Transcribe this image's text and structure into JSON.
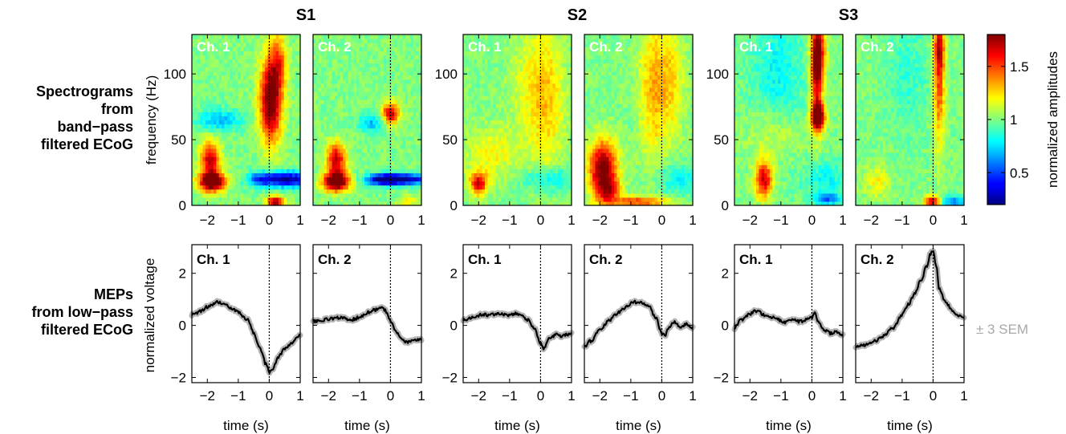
{
  "subjects": [
    "S1",
    "S2",
    "S3"
  ],
  "row_labels": {
    "spectrogram": [
      "Spectrograms",
      "from",
      "band−pass",
      "filtered ECoG"
    ],
    "mep": [
      "MEPs",
      "from low−pass",
      "filtered ECoG"
    ]
  },
  "colorbar": {
    "label": "normalized amplitudes",
    "ticks": [
      0.5,
      1,
      1.5
    ],
    "range": [
      0.2,
      1.8
    ]
  },
  "sem_label": "± 3 SEM",
  "chart_data": [
    {
      "type": "heatmap",
      "ylabel": "frequency (Hz)",
      "xlim": [
        -2.5,
        1
      ],
      "ylim": [
        0,
        130
      ],
      "xticks": [
        -2,
        -1,
        0,
        1
      ],
      "yticks": [
        0,
        50,
        100
      ],
      "panels": [
        {
          "subject": "S1",
          "channel": "Ch. 1",
          "blobs": [
            [
              -1.9,
              35,
              0.22,
              10,
              0.7
            ],
            [
              -1.85,
              18,
              0.3,
              5,
              1.0
            ],
            [
              0.05,
              80,
              0.25,
              22,
              0.9
            ],
            [
              0.3,
              110,
              0.2,
              15,
              0.4
            ],
            [
              0.6,
              20,
              0.55,
              4,
              -0.8
            ],
            [
              -0.3,
              20,
              0.3,
              4,
              -0.4
            ],
            [
              -1.6,
              65,
              0.5,
              6,
              -0.3
            ],
            [
              0.2,
              3,
              0.2,
              3,
              0.8
            ]
          ]
        },
        {
          "subject": "S1",
          "channel": "Ch. 2",
          "blobs": [
            [
              -1.75,
              35,
              0.22,
              9,
              0.7
            ],
            [
              -1.75,
              18,
              0.3,
              5,
              1.0
            ],
            [
              0.0,
              70,
              0.2,
              6,
              0.7
            ],
            [
              0.4,
              20,
              0.6,
              3,
              -0.8
            ],
            [
              -0.3,
              20,
              0.35,
              3,
              -0.5
            ],
            [
              -0.6,
              63,
              0.3,
              5,
              -0.3
            ],
            [
              0.6,
              3,
              0.3,
              3,
              0.2
            ]
          ]
        },
        {
          "subject": "S2",
          "channel": "Ch. 1",
          "blobs": [
            [
              -2.0,
              17,
              0.2,
              6,
              0.65
            ],
            [
              -1.6,
              40,
              0.6,
              14,
              0.2
            ],
            [
              0.2,
              80,
              0.4,
              40,
              0.28
            ],
            [
              0.3,
              20,
              0.6,
              7,
              -0.25
            ],
            [
              -0.5,
              90,
              0.4,
              30,
              0.12
            ]
          ]
        },
        {
          "subject": "S2",
          "channel": "Ch. 2",
          "blobs": [
            [
              -1.9,
              28,
              0.32,
              15,
              0.85
            ],
            [
              -1.7,
              12,
              0.25,
              6,
              0.4
            ],
            [
              -0.3,
              90,
              0.3,
              40,
              0.3
            ],
            [
              0.3,
              95,
              0.3,
              30,
              0.25
            ],
            [
              0.5,
              20,
              0.5,
              8,
              -0.2
            ],
            [
              -0.8,
              3,
              0.7,
              3,
              0.5
            ]
          ]
        },
        {
          "subject": "S3",
          "channel": "Ch. 1",
          "blobs": [
            [
              0.2,
              115,
              0.15,
              18,
              0.85
            ],
            [
              0.2,
              68,
              0.15,
              7,
              1.0
            ],
            [
              0.15,
              90,
              0.12,
              25,
              0.4
            ],
            [
              -1.55,
              20,
              0.2,
              10,
              0.7
            ],
            [
              -1.2,
              55,
              0.6,
              15,
              0.2
            ],
            [
              -1.1,
              95,
              0.6,
              40,
              -0.2
            ],
            [
              0.45,
              20,
              0.45,
              10,
              -0.2
            ],
            [
              0.5,
              5,
              0.3,
              3,
              -0.4
            ]
          ]
        },
        {
          "subject": "S3",
          "channel": "Ch. 2",
          "blobs": [
            [
              0.2,
              95,
              0.13,
              35,
              0.5
            ],
            [
              0.2,
              120,
              0.12,
              12,
              0.4
            ],
            [
              0.0,
              3,
              0.2,
              3,
              0.8
            ],
            [
              0.6,
              3,
              0.4,
              3,
              -0.4
            ],
            [
              -1.8,
              18,
              0.3,
              8,
              0.2
            ],
            [
              -0.8,
              100,
              0.5,
              30,
              -0.12
            ]
          ]
        }
      ]
    },
    {
      "type": "line",
      "xlabel": "time (s)",
      "ylabel": "normalized voltage",
      "xlim": [
        -2.5,
        1
      ],
      "ylim": [
        -2.2,
        3.1
      ],
      "xticks": [
        -2,
        -1,
        0,
        1
      ],
      "yticks": [
        -2,
        0,
        2
      ],
      "panels": [
        {
          "subject": "S1",
          "channel": "Ch. 1",
          "x": [
            -2.5,
            -2.2,
            -2.0,
            -1.7,
            -1.5,
            -1.2,
            -1.0,
            -0.7,
            -0.5,
            -0.3,
            -0.1,
            0.0,
            0.1,
            0.3,
            0.5,
            0.7,
            1.0
          ],
          "y": [
            0.4,
            0.55,
            0.7,
            0.9,
            0.85,
            0.65,
            0.5,
            0.2,
            -0.3,
            -0.9,
            -1.5,
            -1.8,
            -1.7,
            -1.2,
            -0.9,
            -0.7,
            -0.4
          ]
        },
        {
          "subject": "S1",
          "channel": "Ch. 2",
          "x": [
            -2.5,
            -2.2,
            -1.9,
            -1.6,
            -1.3,
            -1.0,
            -0.7,
            -0.5,
            -0.3,
            -0.2,
            0.0,
            0.2,
            0.4,
            0.6,
            0.8,
            1.0
          ],
          "y": [
            0.15,
            0.2,
            0.25,
            0.3,
            0.2,
            0.3,
            0.5,
            0.6,
            0.7,
            0.6,
            0.2,
            -0.3,
            -0.6,
            -0.65,
            -0.55,
            -0.55
          ]
        },
        {
          "subject": "S2",
          "channel": "Ch. 1",
          "x": [
            -2.5,
            -2.2,
            -1.9,
            -1.6,
            -1.3,
            -1.0,
            -0.8,
            -0.6,
            -0.4,
            -0.2,
            0.0,
            0.1,
            0.3,
            0.5,
            0.7,
            1.0
          ],
          "y": [
            0.2,
            0.3,
            0.4,
            0.4,
            0.45,
            0.4,
            0.45,
            0.35,
            0.2,
            -0.1,
            -0.7,
            -0.9,
            -0.5,
            -0.35,
            -0.4,
            -0.3
          ]
        },
        {
          "subject": "S2",
          "channel": "Ch. 2",
          "x": [
            -2.5,
            -2.3,
            -2.0,
            -1.7,
            -1.4,
            -1.1,
            -0.9,
            -0.6,
            -0.4,
            -0.2,
            0.0,
            0.1,
            0.2,
            0.4,
            0.6,
            0.8,
            1.0
          ],
          "y": [
            -0.85,
            -0.6,
            -0.2,
            0.2,
            0.5,
            0.75,
            0.9,
            0.85,
            0.7,
            0.3,
            -0.3,
            -0.4,
            -0.1,
            0.15,
            -0.05,
            0.05,
            -0.1
          ]
        },
        {
          "subject": "S3",
          "channel": "Ch. 1",
          "x": [
            -2.5,
            -2.3,
            -2.0,
            -1.8,
            -1.5,
            -1.2,
            -0.9,
            -0.6,
            -0.4,
            -0.2,
            0.0,
            0.1,
            0.2,
            0.4,
            0.6,
            0.8,
            1.0
          ],
          "y": [
            -0.1,
            0.2,
            0.45,
            0.55,
            0.4,
            0.3,
            0.1,
            0.2,
            0.15,
            0.2,
            0.3,
            0.5,
            0.1,
            -0.2,
            -0.3,
            -0.25,
            -0.4
          ]
        },
        {
          "subject": "S3",
          "channel": "Ch. 2",
          "x": [
            -2.5,
            -2.2,
            -1.9,
            -1.6,
            -1.3,
            -1.0,
            -0.8,
            -0.6,
            -0.4,
            -0.2,
            -0.1,
            0.0,
            0.1,
            0.2,
            0.4,
            0.6,
            0.8,
            1.0
          ],
          "y": [
            -0.8,
            -0.75,
            -0.6,
            -0.4,
            -0.1,
            0.4,
            0.8,
            1.2,
            1.7,
            2.3,
            2.7,
            2.9,
            2.3,
            1.4,
            0.9,
            0.6,
            0.4,
            0.25
          ]
        }
      ]
    }
  ]
}
